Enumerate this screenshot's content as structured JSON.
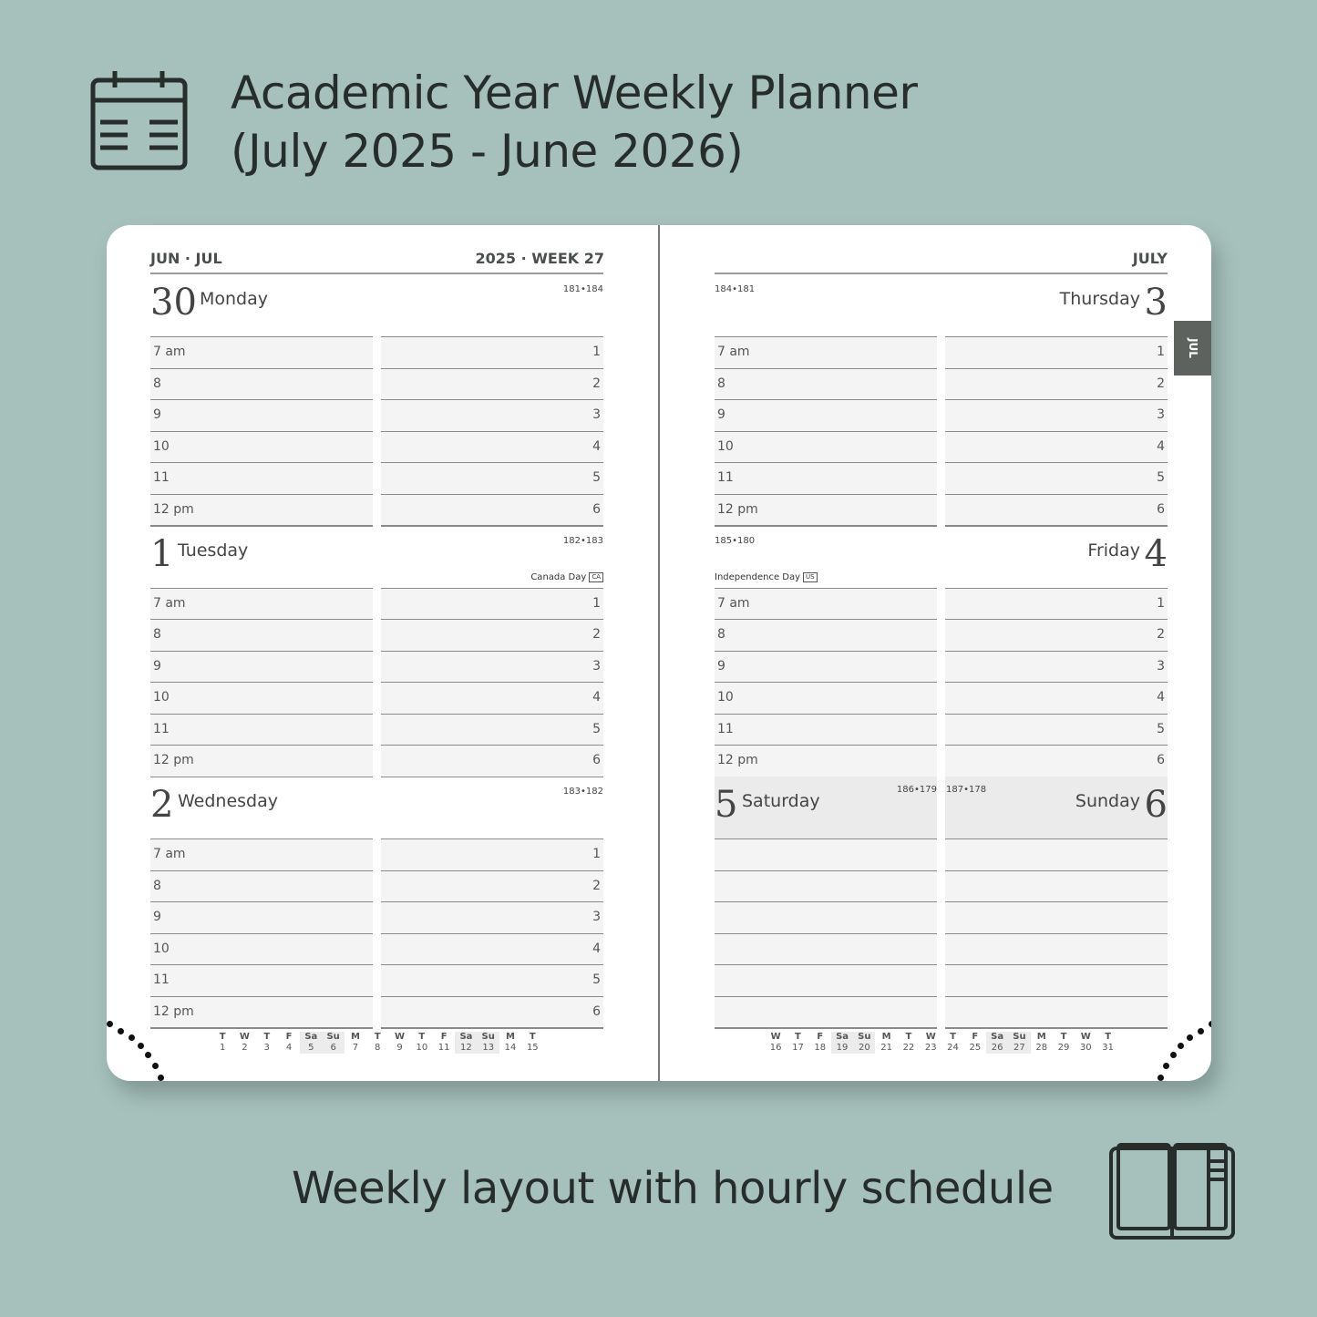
{
  "header": {
    "title_line1": "Academic Year Weekly Planner",
    "title_line2": "(July 2025 - June 2026)",
    "icon": "calendar-icon"
  },
  "footer": {
    "subtitle": "Weekly layout with hourly schedule",
    "icon": "open-book-icon"
  },
  "left_page": {
    "header_left": "JUN · JUL",
    "header_right": "2025 · WEEK 27",
    "days": [
      {
        "num": "30",
        "name": "Monday",
        "pages": "181•184",
        "holiday": "",
        "badge": ""
      },
      {
        "num": "1",
        "name": "Tuesday",
        "pages": "182•183",
        "holiday": "Canada Day",
        "badge": "CA"
      },
      {
        "num": "2",
        "name": "Wednesday",
        "pages": "183•182",
        "holiday": "",
        "badge": ""
      }
    ],
    "mini_calendar": [
      [
        "T",
        "1"
      ],
      [
        "W",
        "2"
      ],
      [
        "T",
        "3"
      ],
      [
        "F",
        "4"
      ],
      [
        "Sa",
        "5"
      ],
      [
        "Su",
        "6"
      ],
      [
        "M",
        "7"
      ],
      [
        "T",
        "8"
      ],
      [
        "W",
        "9"
      ],
      [
        "T",
        "10"
      ],
      [
        "F",
        "11"
      ],
      [
        "Sa",
        "12"
      ],
      [
        "Su",
        "13"
      ],
      [
        "M",
        "14"
      ],
      [
        "T",
        "15"
      ]
    ]
  },
  "right_page": {
    "header_right": "JULY",
    "tab": "JUL",
    "days": [
      {
        "num": "3",
        "name": "Thursday",
        "pages": "184•181",
        "holiday": "",
        "badge": ""
      },
      {
        "num": "4",
        "name": "Friday",
        "pages": "185•180",
        "holiday": "Independence Day",
        "badge": "US"
      }
    ],
    "weekend": [
      {
        "num": "5",
        "name": "Saturday",
        "pages": "186•179"
      },
      {
        "num": "6",
        "name": "Sunday",
        "pages": "187•178"
      }
    ],
    "mini_calendar": [
      [
        "W",
        "16"
      ],
      [
        "T",
        "17"
      ],
      [
        "F",
        "18"
      ],
      [
        "Sa",
        "19"
      ],
      [
        "Su",
        "20"
      ],
      [
        "M",
        "21"
      ],
      [
        "T",
        "22"
      ],
      [
        "W",
        "23"
      ],
      [
        "T",
        "24"
      ],
      [
        "F",
        "25"
      ],
      [
        "Sa",
        "26"
      ],
      [
        "Su",
        "27"
      ],
      [
        "M",
        "28"
      ],
      [
        "T",
        "29"
      ],
      [
        "W",
        "30"
      ],
      [
        "T",
        "31"
      ]
    ]
  },
  "hours_am": [
    "7 am",
    "8",
    "9",
    "10",
    "11",
    "12 pm"
  ],
  "hours_pm": [
    "1",
    "2",
    "3",
    "4",
    "5",
    "6"
  ]
}
